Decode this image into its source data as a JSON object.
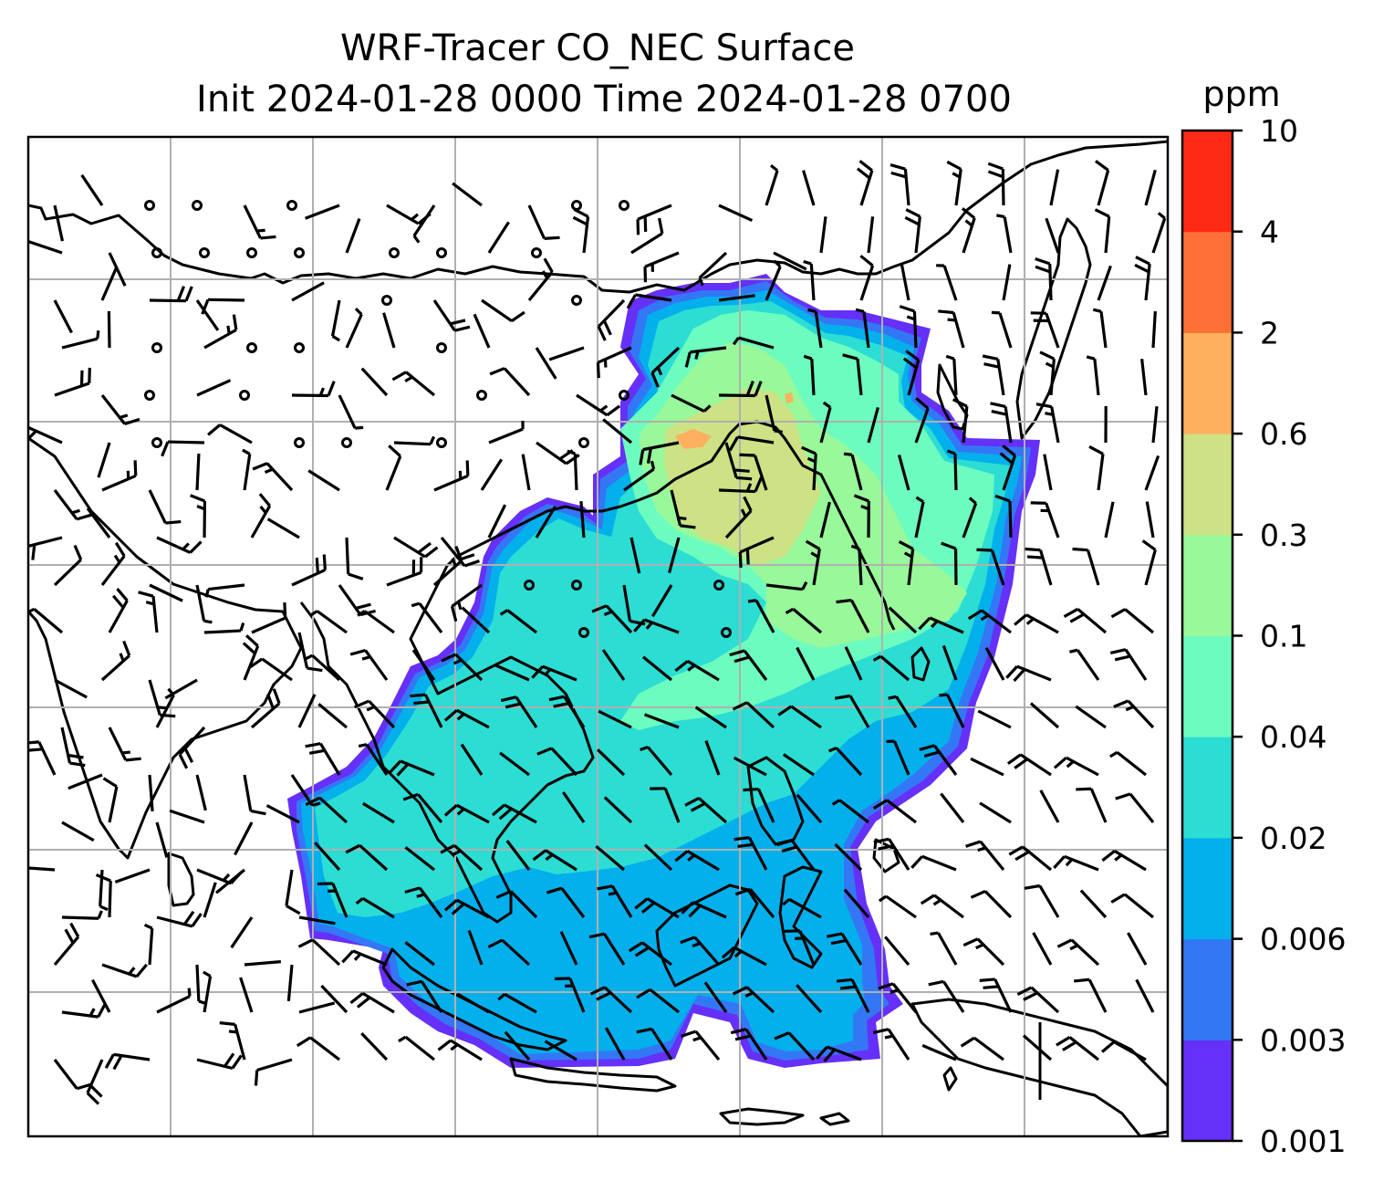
{
  "title_line1": "WRF-Tracer CO_NEC Surface",
  "title_line2": "Init 2024-01-28 0000 Time 2024-01-28 0700",
  "colorbar": {
    "unit": "ppm",
    "ticks": [
      "0.001",
      "0.003",
      "0.006",
      "0.02",
      "0.04",
      "0.1",
      "0.3",
      "0.6",
      "2",
      "4",
      "10"
    ],
    "colors": [
      "#6530f8",
      "#3477f5",
      "#03b0ec",
      "#2cddd4",
      "#6dfcbf",
      "#98f89a",
      "#cce284",
      "#ffb05e",
      "#ff7036",
      "#ff2a15"
    ]
  },
  "map": {
    "gridlines": true,
    "field_shading": "contourf",
    "wind_barbs": true
  }
}
